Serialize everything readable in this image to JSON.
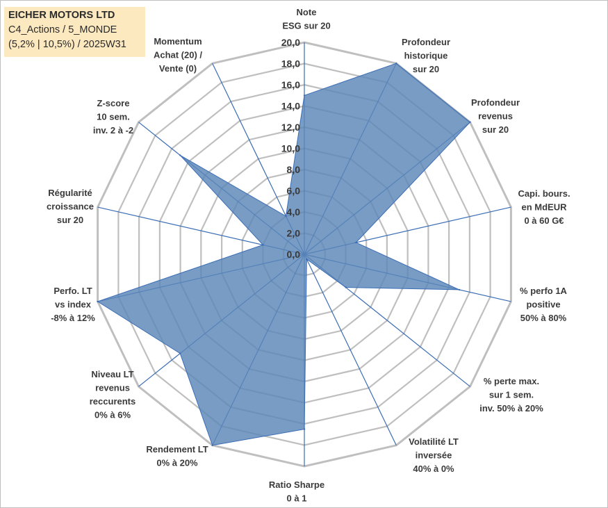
{
  "title_box": {
    "line1": "EICHER MOTORS LTD",
    "line2": "C4_Actions / 5_MONDE",
    "line3": "(5,2% | 10,5%) / 2025W31"
  },
  "colors": {
    "fill": "#5b86b8",
    "stroke": "#3a6db5",
    "grid": "#bfbfbf",
    "title_bg": "#fde9bf"
  },
  "chart_data": {
    "type": "radar",
    "grid": true,
    "rlim": [
      0,
      20
    ],
    "tick_step": 2,
    "tick_labels": [
      "0,0",
      "2,0",
      "4,0",
      "6,0",
      "8,0",
      "10,0",
      "12,0",
      "14,0",
      "16,0",
      "18,0",
      "20,0"
    ],
    "axes": [
      {
        "label": [
          "Note",
          "ESG sur 20"
        ],
        "value": 15
      },
      {
        "label": [
          "Profondeur",
          "historique",
          "sur 20"
        ],
        "value": 20
      },
      {
        "label": [
          "Profondeur",
          "revenus",
          "sur 20"
        ],
        "value": 20
      },
      {
        "label": [
          "Capi. bours.",
          "en MdEUR",
          "0 à 60 G€"
        ],
        "value": 5
      },
      {
        "label": [
          "% perfo 1A",
          "positive",
          "50% à 80%"
        ],
        "value": 15
      },
      {
        "label": [
          "% perte max.",
          "sur 1 sem.",
          "inv. 50% à 20%"
        ],
        "value": 5
      },
      {
        "label": [
          "Volatilité LT",
          "inversée",
          "40% à 0%"
        ],
        "value": 0.5
      },
      {
        "label": [
          "Ratio Sharpe",
          "0 à 1"
        ],
        "value": 16.5
      },
      {
        "label": [
          "Rendement LT",
          "0% à 20%"
        ],
        "value": 20
      },
      {
        "label": [
          "Niveau LT",
          "revenus",
          "reccurents",
          "0% à 6%"
        ],
        "value": 15
      },
      {
        "label": [
          "Perfo. LT",
          "vs index",
          "-8% à 12%"
        ],
        "value": 20
      },
      {
        "label": [
          "Régularité",
          "croissance",
          "sur 20"
        ],
        "value": 4
      },
      {
        "label": [
          "Z-score",
          "10 sem.",
          "inv. 2 à -2"
        ],
        "value": 15
      },
      {
        "label": [
          "Momentum",
          "Achat (20) /",
          "Vente (0)"
        ],
        "value": 4
      }
    ]
  }
}
